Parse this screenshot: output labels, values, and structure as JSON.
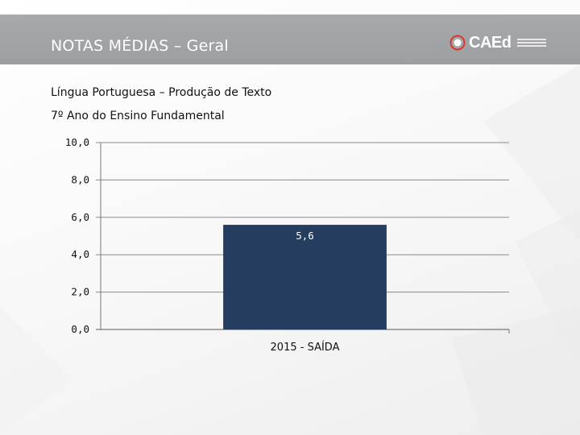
{
  "slide": {
    "header_title": "NOTAS MÉDIAS – Geral",
    "subtitle_line1": "Língua Portuguesa – Produção de Texto",
    "subtitle_line2": "7º Ano do Ensino Fundamental"
  },
  "logo": {
    "wordmark": "CAEd",
    "icon": "caed-logo-mark-icon"
  },
  "colors": {
    "header": "#9fa1a4",
    "bar": "#253e60",
    "axis": "#888888"
  },
  "chart_data": {
    "type": "bar",
    "categories": [
      "2015 - SAÍDA"
    ],
    "values": [
      5.6
    ],
    "value_labels": [
      "5,6"
    ],
    "y_ticks": [
      "0,0",
      "2,0",
      "4,0",
      "6,0",
      "8,0",
      "10,0"
    ],
    "ylim": [
      0,
      10
    ],
    "grid": true,
    "title": "",
    "xlabel": "",
    "ylabel": ""
  }
}
